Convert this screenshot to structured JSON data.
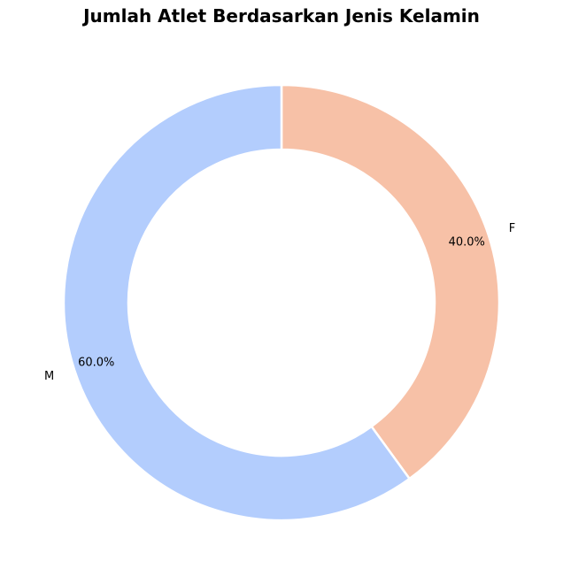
{
  "chart_data": {
    "type": "pie",
    "title": "Jumlah Atlet Berdasarkan Jenis Kelamin",
    "donut": true,
    "categories": [
      "F",
      "M"
    ],
    "values": [
      40.0,
      60.0
    ],
    "percent_labels": [
      "40.0%",
      "60.0%"
    ],
    "colors": [
      "#f7c1a7",
      "#b3cdfd"
    ],
    "start_angle_deg": 90,
    "direction": "clockwise",
    "legend": "none"
  }
}
